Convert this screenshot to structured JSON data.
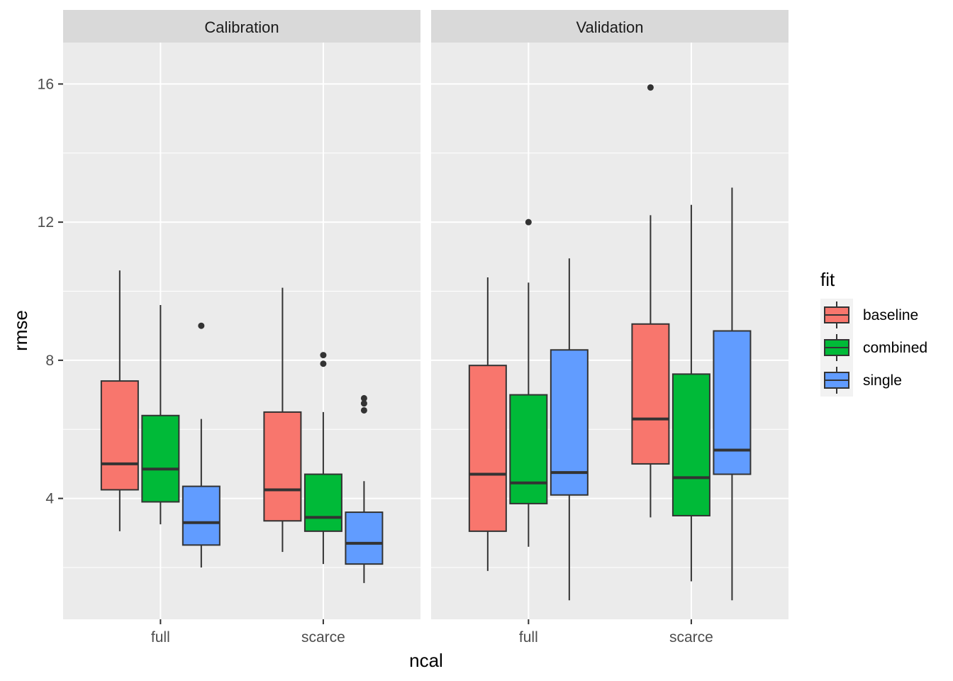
{
  "chart_data": {
    "type": "boxplot",
    "xlabel": "ncal",
    "ylabel": "rmse",
    "ylim": [
      0.5,
      17.2
    ],
    "y_ticks": [
      4,
      8,
      12,
      16
    ],
    "y_tick_labels": [
      "4",
      "8",
      "12",
      "16"
    ],
    "categories": [
      "full",
      "scarce"
    ],
    "panels": [
      {
        "name": "Calibration",
        "groups": {
          "full": {
            "baseline": {
              "min": 3.05,
              "q1": 4.25,
              "median": 5.0,
              "q3": 7.4,
              "max": 10.6,
              "outliers": []
            },
            "combined": {
              "min": 3.25,
              "q1": 3.9,
              "median": 4.85,
              "q3": 6.4,
              "max": 9.6,
              "outliers": []
            },
            "single": {
              "min": 2.0,
              "q1": 2.65,
              "median": 3.3,
              "q3": 4.35,
              "max": 6.3,
              "outliers": [
                9.0
              ]
            }
          },
          "scarce": {
            "baseline": {
              "min": 2.45,
              "q1": 3.35,
              "median": 4.25,
              "q3": 6.5,
              "max": 10.1,
              "outliers": []
            },
            "combined": {
              "min": 2.1,
              "q1": 3.05,
              "median": 3.45,
              "q3": 4.7,
              "max": 6.5,
              "outliers": [
                7.9,
                8.15
              ]
            },
            "single": {
              "min": 1.55,
              "q1": 2.1,
              "median": 2.7,
              "q3": 3.6,
              "max": 4.5,
              "outliers": [
                6.55,
                6.75,
                6.9
              ]
            }
          }
        }
      },
      {
        "name": "Validation",
        "groups": {
          "full": {
            "baseline": {
              "min": 1.9,
              "q1": 3.05,
              "median": 4.7,
              "q3": 7.85,
              "max": 10.4,
              "outliers": []
            },
            "combined": {
              "min": 2.6,
              "q1": 3.85,
              "median": 4.45,
              "q3": 7.0,
              "max": 10.25,
              "outliers": [
                12.0
              ]
            },
            "single": {
              "min": 1.05,
              "q1": 4.1,
              "median": 4.75,
              "q3": 8.3,
              "max": 10.95,
              "outliers": []
            }
          },
          "scarce": {
            "baseline": {
              "min": 3.45,
              "q1": 5.0,
              "median": 6.3,
              "q3": 9.05,
              "max": 12.2,
              "outliers": [
                15.9
              ]
            },
            "combined": {
              "min": 1.6,
              "q1": 3.5,
              "median": 4.6,
              "q3": 7.6,
              "max": 12.5,
              "outliers": []
            },
            "single": {
              "min": 1.05,
              "q1": 4.7,
              "median": 5.4,
              "q3": 8.85,
              "max": 13.0,
              "outliers": []
            }
          }
        }
      }
    ],
    "legend": {
      "title": "fit",
      "position": "right",
      "entries": [
        {
          "label": "baseline",
          "color": "#F8766D"
        },
        {
          "label": "combined",
          "color": "#00BA38"
        },
        {
          "label": "single",
          "color": "#619CFF"
        }
      ]
    }
  }
}
